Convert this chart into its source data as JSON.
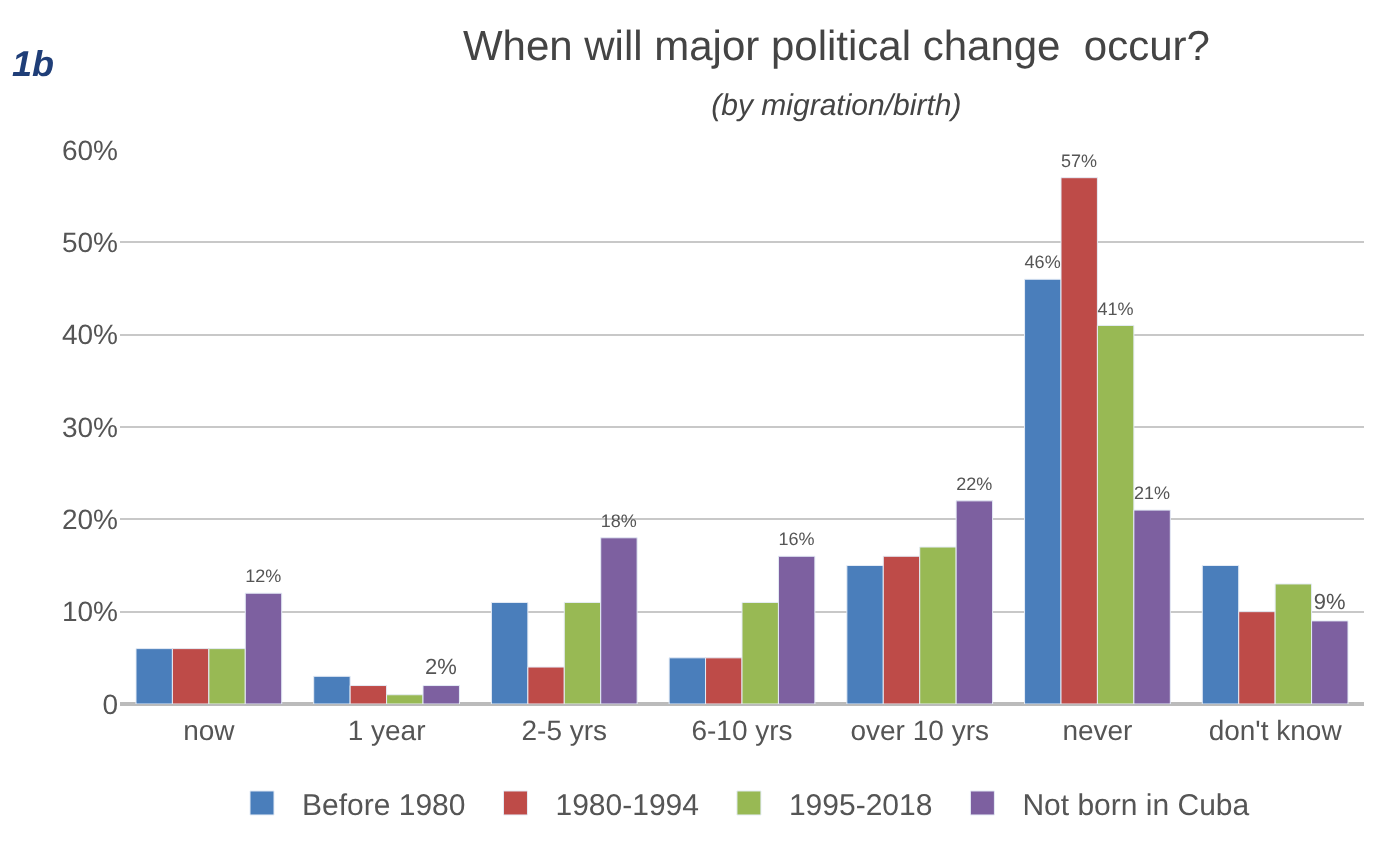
{
  "chart_data": {
    "type": "bar",
    "title": "When will major political change  occur?",
    "subtitle": "(by migration/birth)",
    "annotations": [
      "1b"
    ],
    "categories": [
      "now",
      "1 year",
      "2-5 yrs",
      "6-10 yrs",
      "over 10 yrs",
      "never",
      "don't know"
    ],
    "series": [
      {
        "name": "Before 1980",
        "color": "#4a7ebb",
        "values": [
          6,
          3,
          11,
          5,
          15,
          46,
          15
        ],
        "value_labels": [
          null,
          null,
          null,
          null,
          null,
          "46%",
          null
        ]
      },
      {
        "name": "1980-1994",
        "color": "#be4b48",
        "values": [
          6,
          2,
          4,
          5,
          16,
          57,
          10
        ],
        "value_labels": [
          null,
          null,
          null,
          null,
          null,
          "57%",
          null
        ]
      },
      {
        "name": "1995-2018",
        "color": "#98b954",
        "values": [
          6,
          1,
          11,
          11,
          17,
          41,
          13
        ],
        "value_labels": [
          null,
          null,
          null,
          null,
          null,
          "41%",
          null
        ]
      },
      {
        "name": "Not born in Cuba",
        "color": "#7d60a0",
        "values": [
          12,
          2,
          18,
          16,
          22,
          21,
          9
        ],
        "value_labels": [
          "12%",
          "2%",
          "18%",
          "16%",
          "22%",
          "21%",
          "9%"
        ]
      }
    ],
    "ylim": [
      0,
      60
    ],
    "yticks": [
      {
        "value": 0,
        "label": "0"
      },
      {
        "value": 10,
        "label": "10%"
      },
      {
        "value": 20,
        "label": "20%"
      },
      {
        "value": 30,
        "label": "30%"
      },
      {
        "value": 40,
        "label": "40%"
      },
      {
        "value": 50,
        "label": "50%"
      },
      {
        "value": 60,
        "label": "60%"
      }
    ],
    "grid": "y",
    "legend": "bottom"
  }
}
